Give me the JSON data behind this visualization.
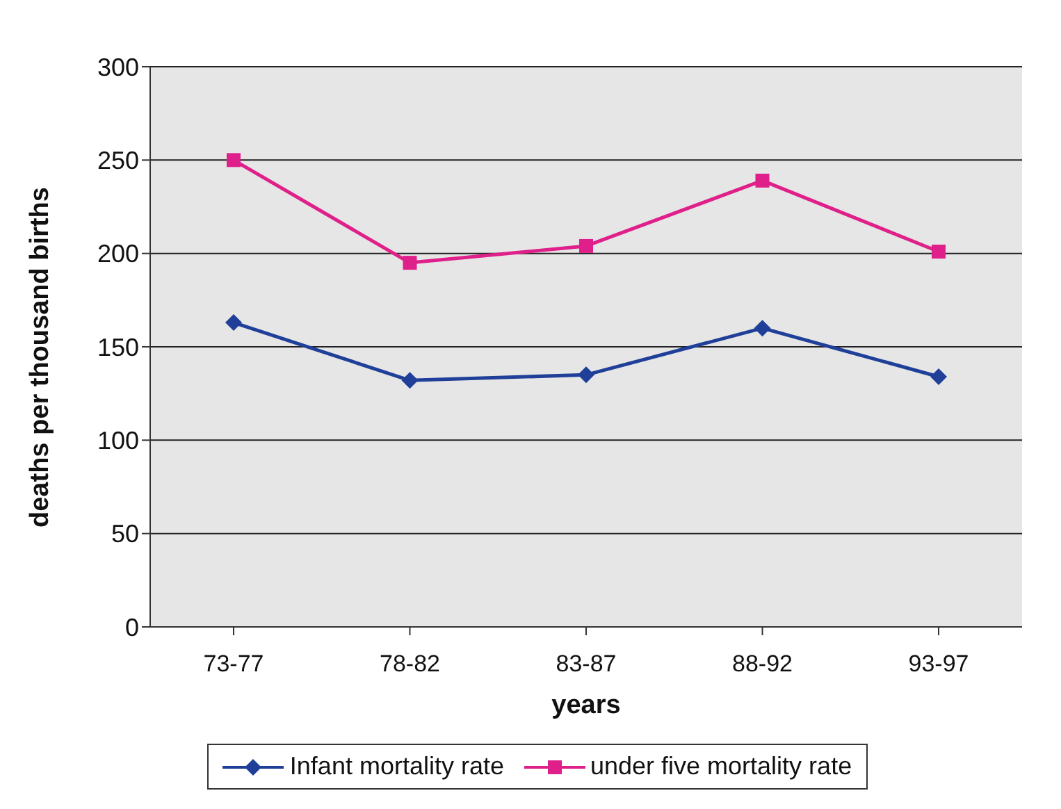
{
  "chart_data": {
    "type": "line",
    "xlabel": "years",
    "ylabel": "deaths per thousand births",
    "categories": [
      "73-77",
      "78-82",
      "83-87",
      "88-92",
      "93-97"
    ],
    "series": [
      {
        "name": "Infant mortality rate",
        "color": "#1f3f99",
        "marker": "diamond",
        "values": [
          163,
          132,
          135,
          160,
          134
        ]
      },
      {
        "name": "under five mortality rate",
        "color": "#e0208a",
        "marker": "square",
        "values": [
          250,
          195,
          204,
          239,
          201
        ]
      }
    ],
    "ylim": [
      0,
      300
    ],
    "yticks": [
      0,
      50,
      100,
      150,
      200,
      250,
      300
    ],
    "grid": "y",
    "legend": "bottom"
  }
}
